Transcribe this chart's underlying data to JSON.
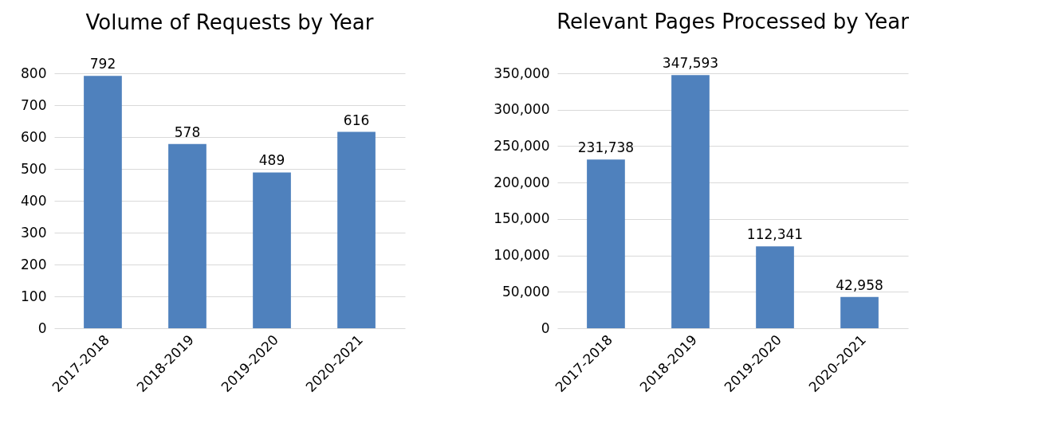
{
  "chart_data": [
    {
      "type": "bar",
      "title": "Volume of Requests by Year",
      "categories": [
        "2017-2018",
        "2018-2019",
        "2019-2020",
        "2020-2021"
      ],
      "values": [
        792,
        578,
        489,
        616
      ],
      "color": "#4f81bd",
      "ylim": [
        0,
        800
      ],
      "yticks": [
        0,
        100,
        200,
        300,
        400,
        500,
        600,
        700,
        800
      ],
      "grid": "y",
      "data_labels": true
    },
    {
      "type": "bar",
      "title": "Relevant Pages Processed by Year",
      "categories": [
        "2017-2018",
        "2018-2019",
        "2019-2020",
        "2020-2021"
      ],
      "values": [
        231738,
        347593,
        112341,
        42958
      ],
      "color": "#4f81bd",
      "ylim": [
        0,
        350000
      ],
      "yticks": [
        {
          "value": 0,
          "label": "0"
        },
        {
          "value": 50000,
          "label": "50,000"
        },
        {
          "value": 100000,
          "label": "100,000"
        },
        {
          "value": 150000,
          "label": "150,000"
        },
        {
          "value": 200000,
          "label": "200,000"
        },
        {
          "value": 250000,
          "label": "250,000"
        },
        {
          "value": 300000,
          "label": "300,000"
        },
        {
          "value": 350000,
          "label": "350,000"
        }
      ],
      "grid": "y",
      "value_labels": [
        "231,738",
        "347,593",
        "112,341",
        "42,958"
      ]
    }
  ]
}
